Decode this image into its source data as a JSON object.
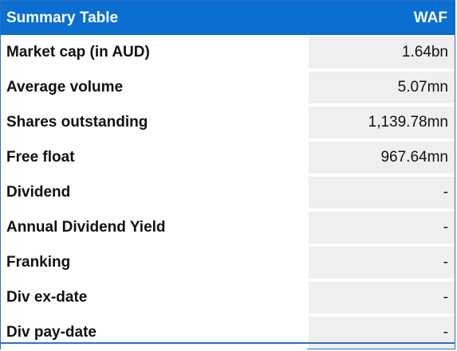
{
  "header": {
    "title": "Summary Table",
    "ticker": "WAF"
  },
  "rows": [
    {
      "label": "Market cap (in AUD)",
      "value": "1.64bn"
    },
    {
      "label": "Average volume",
      "value": "5.07mn"
    },
    {
      "label": "Shares outstanding",
      "value": "1,139.78mn"
    },
    {
      "label": "Free float",
      "value": "967.64mn"
    },
    {
      "label": "Dividend",
      "value": "-"
    },
    {
      "label": "Annual Dividend Yield",
      "value": "-"
    },
    {
      "label": "Franking",
      "value": "-"
    },
    {
      "label": "Div ex-date",
      "value": "-"
    },
    {
      "label": "Div pay-date",
      "value": "-"
    }
  ],
  "colors": {
    "header_bg": "#0a6fd1",
    "header_text": "#ffffff",
    "value_cell_bg": "#efefef",
    "border": "#2e6fc0"
  }
}
